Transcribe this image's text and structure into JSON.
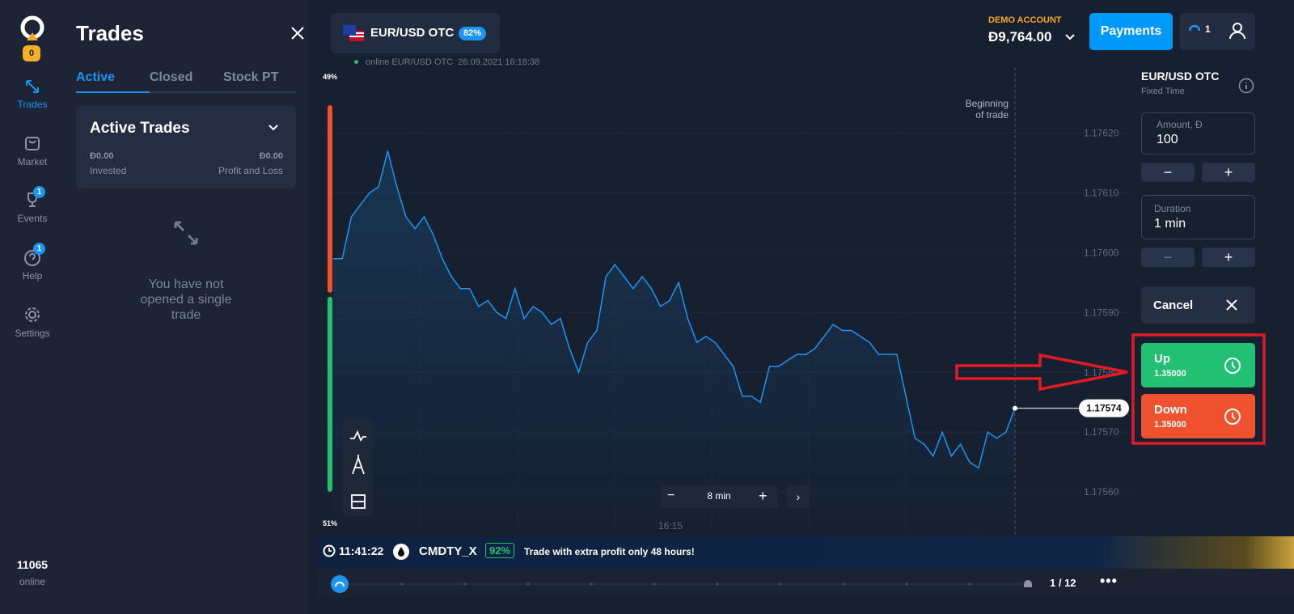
{
  "sidebar": {
    "logo_badge": "0",
    "nav": [
      {
        "label": "Trades"
      },
      {
        "label": "Market"
      },
      {
        "label": "Events",
        "badge": "1"
      },
      {
        "label": "Help",
        "badge": "1"
      },
      {
        "label": "Settings"
      }
    ],
    "online_count": "11065",
    "online_label": "online"
  },
  "trades_panel": {
    "title": "Trades",
    "tabs": [
      "Active",
      "Closed",
      "Stock PT"
    ],
    "card": {
      "title": "Active Trades",
      "invested_value": "Đ0.00",
      "invested_label": "Invested",
      "pnl_value": "Đ0.00",
      "pnl_label": "Profit and Loss"
    },
    "empty_message": "You have not opened a single trade"
  },
  "header": {
    "asset": "EUR/USD OTC",
    "payout": "82%",
    "account_label": "DEMO ACCOUNT",
    "balance": "Đ9,764.00",
    "payments": "Payments",
    "notifications": "1"
  },
  "chart": {
    "status": "online EUR/USD OTC  26.09.2021 16:18:38",
    "sentiment_top": "49%",
    "sentiment_bottom": "51%",
    "marker": [
      "Beginning",
      "of trade"
    ],
    "ylim": [
      1.17553,
      1.17631
    ],
    "yticks": [
      {
        "value": 1.1756,
        "label": "1.17560"
      },
      {
        "value": 1.1757,
        "label": "1.17570"
      },
      {
        "value": 1.1758,
        "label": "1.17580"
      },
      {
        "value": 1.1759,
        "label": "1.17590"
      },
      {
        "value": 1.176,
        "label": "1.17600"
      },
      {
        "value": 1.1761,
        "label": "1.17610"
      },
      {
        "value": 1.1762,
        "label": "1.17620"
      }
    ],
    "price_series": [
      1.17599,
      1.17599,
      1.17606,
      1.17608,
      1.1761,
      1.17611,
      1.17617,
      1.17611,
      1.17606,
      1.17604,
      1.17606,
      1.17603,
      1.17599,
      1.17596,
      1.17594,
      1.17594,
      1.17591,
      1.17592,
      1.1759,
      1.17589,
      1.17594,
      1.17589,
      1.17591,
      1.1759,
      1.17588,
      1.17589,
      1.17584,
      1.1758,
      1.17585,
      1.17587,
      1.17596,
      1.17598,
      1.17596,
      1.17594,
      1.17596,
      1.17594,
      1.17591,
      1.17592,
      1.17595,
      1.17589,
      1.17585,
      1.17586,
      1.17585,
      1.17583,
      1.17581,
      1.17576,
      1.17576,
      1.17575,
      1.17581,
      1.17581,
      1.17582,
      1.17583,
      1.17583,
      1.17584,
      1.17586,
      1.17588,
      1.17587,
      1.17587,
      1.17586,
      1.17585,
      1.17583,
      1.17583,
      1.17583,
      1.17576,
      1.17569,
      1.17568,
      1.17566,
      1.1757,
      1.17566,
      1.17568,
      1.17565,
      1.17564,
      1.1757,
      1.17569,
      1.1757,
      1.17574
    ],
    "current_price": 1.17574,
    "timeframe": "8 min",
    "time_label": "16:15"
  },
  "trade_panel": {
    "asset": "EUR/USD OTC",
    "mode": "Fixed Time",
    "amount_label": "Amount, Đ",
    "amount": "100",
    "duration_label": "Duration",
    "duration": "1 min",
    "cancel": "Cancel",
    "up_label": "Up",
    "up_value": "1.35000",
    "down_label": "Down",
    "down_value": "1.35000"
  },
  "ticker": {
    "time": "11:41:22",
    "symbol": "CMDTY_X",
    "payout": "92%",
    "message": "Trade with extra profit only 48 hours!",
    "page": "1 / 12"
  }
}
